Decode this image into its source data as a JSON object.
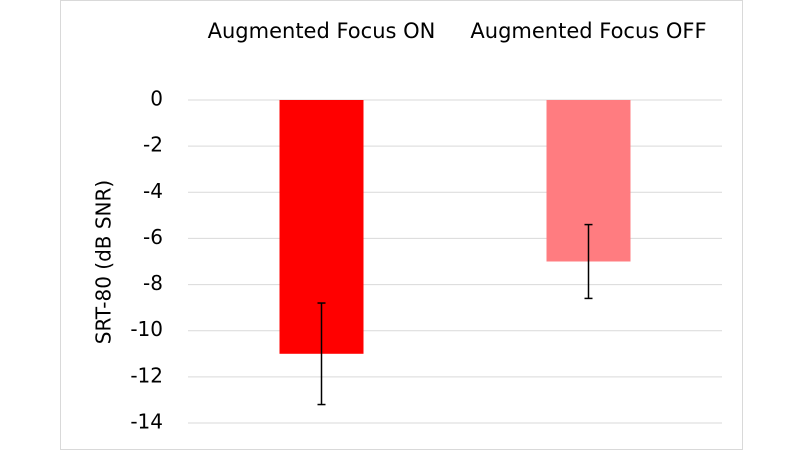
{
  "chart_data": {
    "type": "bar",
    "categories": [
      "Augmented Focus ON",
      "Augmented Focus OFF"
    ],
    "values": [
      -11,
      -7
    ],
    "errors": [
      2.2,
      1.6
    ],
    "colors": [
      "#ff0000",
      "#ff7c80"
    ],
    "y_label": "SRT-80 (dB SNR)",
    "ylim": [
      -14,
      0
    ],
    "yticks": [
      0,
      -2,
      -4,
      -6,
      -8,
      -10,
      -12,
      -14
    ],
    "grid": true
  }
}
